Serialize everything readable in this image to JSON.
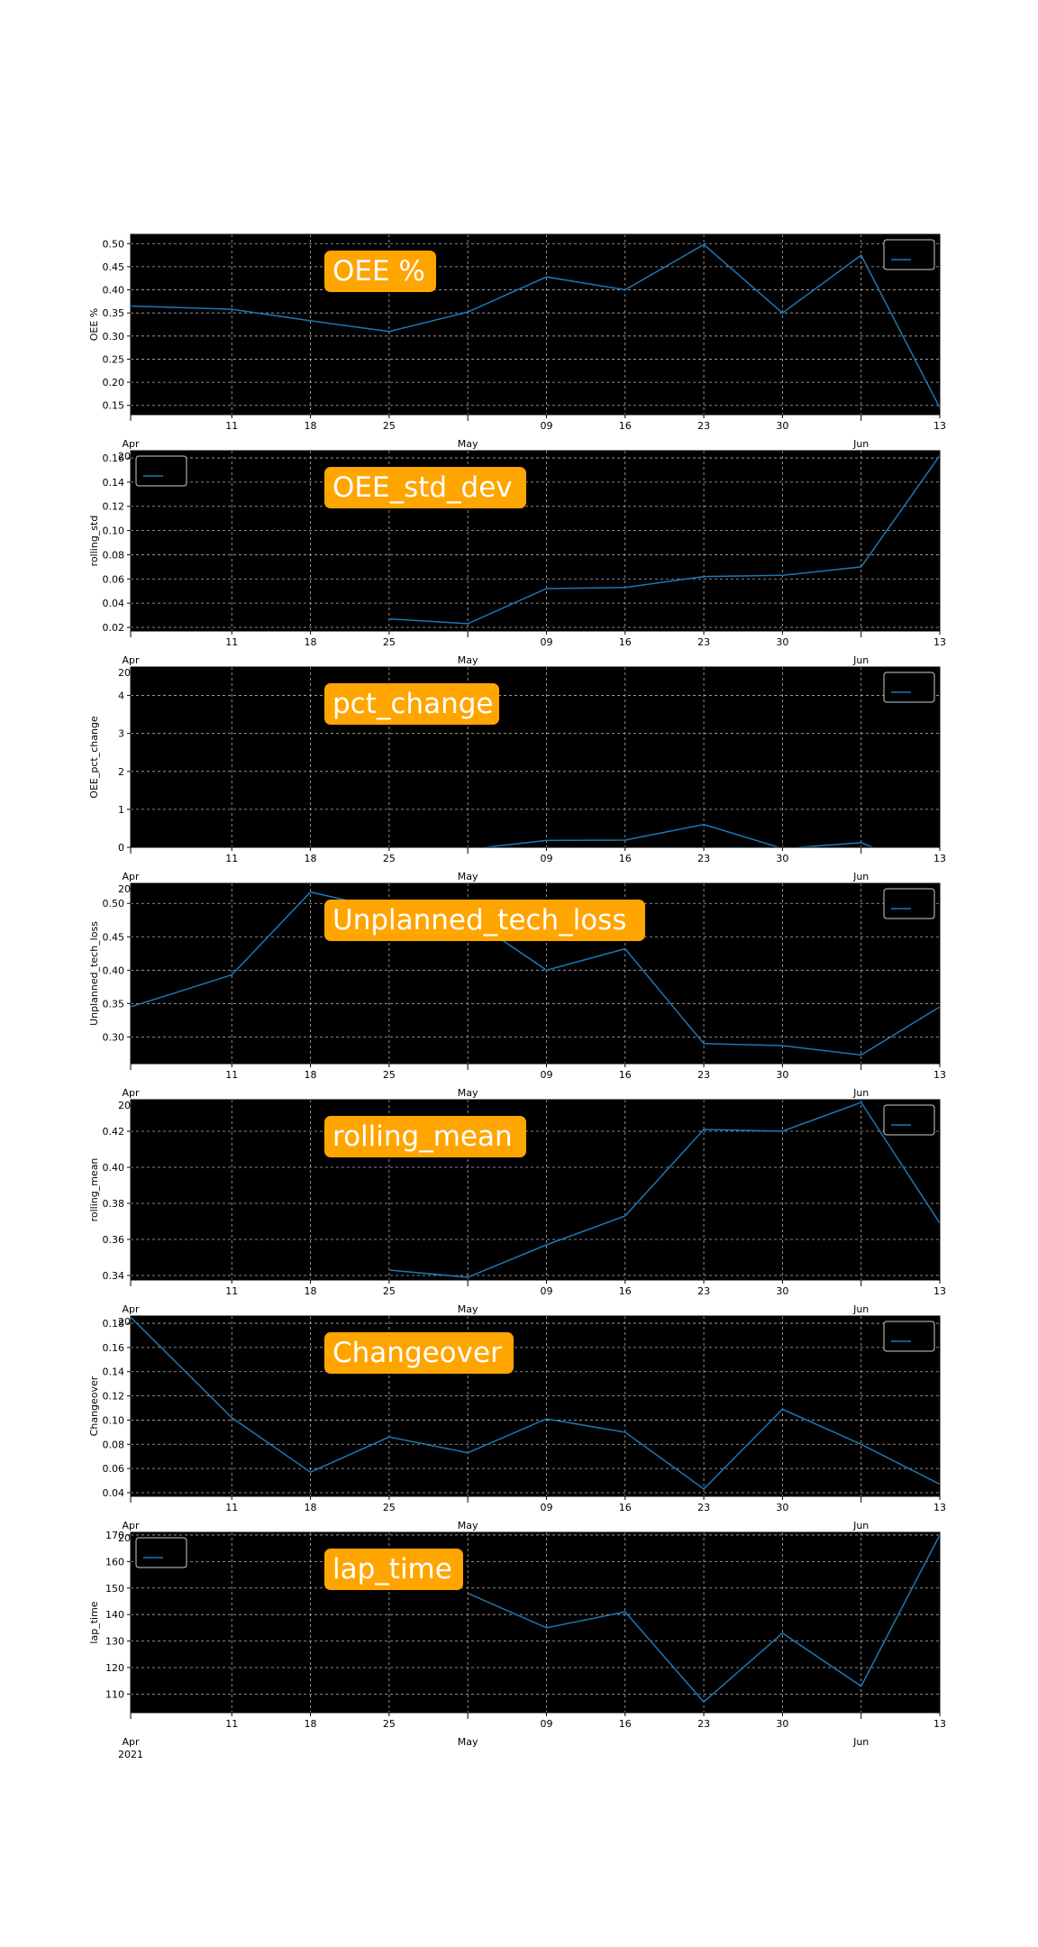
{
  "x_dates": [
    "2021-04-02",
    "2021-04-11",
    "2021-04-18",
    "2021-04-25",
    "2021-05-02",
    "2021-05-09",
    "2021-05-16",
    "2021-05-23",
    "2021-05-30",
    "2021-06-06",
    "2021-06-13"
  ],
  "x_ticks": {
    "minor": [
      {
        "date": "2021-04-11",
        "label": "11"
      },
      {
        "date": "2021-04-18",
        "label": "18"
      },
      {
        "date": "2021-04-25",
        "label": "25"
      },
      {
        "date": "2021-05-09",
        "label": "09"
      },
      {
        "date": "2021-05-16",
        "label": "16"
      },
      {
        "date": "2021-05-23",
        "label": "23"
      },
      {
        "date": "2021-05-30",
        "label": "30"
      },
      {
        "date": "2021-06-13",
        "label": "13"
      }
    ],
    "major": [
      {
        "date": "2021-04-02",
        "label": "Apr",
        "sub": "2021"
      },
      {
        "date": "2021-05-02",
        "label": "May",
        "sub": ""
      },
      {
        "date": "2021-06-06",
        "label": "Jun",
        "sub": ""
      }
    ]
  },
  "colors": {
    "plot_bg": "#000000",
    "line": "#1f77b4",
    "badge_bg": "#ffa500",
    "badge_text": "#ffffff",
    "grid": "#b0b0b0"
  },
  "chart_data": [
    {
      "type": "line",
      "title": "OEE %",
      "ylabel": "OEE %",
      "ylim": [
        0.13,
        0.52
      ],
      "legend": "top-right",
      "yticks": [
        0.15,
        0.2,
        0.25,
        0.3,
        0.35,
        0.4,
        0.45,
        0.5
      ],
      "tick_labels": [
        "0.15",
        "0.20",
        "0.25",
        "0.30",
        "0.35",
        "0.40",
        "0.45",
        "0.50"
      ],
      "values": [
        0.365,
        0.358,
        0.333,
        0.31,
        0.352,
        0.428,
        0.4,
        0.498,
        0.35,
        0.475,
        0.145
      ]
    },
    {
      "type": "line",
      "title": "OEE_std_dev",
      "ylabel": "rolling_std",
      "ylim": [
        0.017,
        0.166
      ],
      "legend": "top-left",
      "yticks": [
        0.02,
        0.04,
        0.06,
        0.08,
        0.1,
        0.12,
        0.14,
        0.16
      ],
      "tick_labels": [
        "0.02",
        "0.04",
        "0.06",
        "0.08",
        "0.10",
        "0.12",
        "0.14",
        "0.16"
      ],
      "values": [
        null,
        null,
        null,
        0.027,
        0.023,
        0.052,
        0.053,
        0.062,
        0.063,
        0.07,
        0.162
      ]
    },
    {
      "type": "line",
      "title": "pct_change",
      "ylabel": "OEE_pct_change",
      "ylim": [
        0,
        4.75
      ],
      "legend": "top-right",
      "yticks": [
        0,
        1,
        2,
        3,
        4
      ],
      "tick_labels": [
        "0",
        "1",
        "2",
        "3",
        "4"
      ],
      "values": [
        null,
        null,
        null,
        null,
        -0.05,
        0.18,
        0.19,
        0.6,
        -0.03,
        0.12,
        -0.7
      ]
    },
    {
      "type": "line",
      "title": "Unplanned_tech_loss",
      "ylabel": "Unplanned_tech_loss",
      "ylim": [
        0.26,
        0.53
      ],
      "legend": "top-right",
      "yticks": [
        0.3,
        0.35,
        0.4,
        0.45,
        0.5
      ],
      "tick_labels": [
        "0.30",
        "0.35",
        "0.40",
        "0.45",
        "0.50"
      ],
      "values": [
        0.345,
        0.393,
        0.517,
        0.49,
        0.48,
        0.4,
        0.432,
        0.29,
        0.287,
        0.273,
        0.345
      ]
    },
    {
      "type": "line",
      "title": "rolling_mean",
      "ylabel": "rolling_mean",
      "ylim": [
        0.3375,
        0.4375
      ],
      "legend": "top-right",
      "yticks": [
        0.34,
        0.36,
        0.38,
        0.4,
        0.42
      ],
      "tick_labels": [
        "0.34",
        "0.36",
        "0.38",
        "0.40",
        "0.42"
      ],
      "values": [
        null,
        null,
        null,
        0.343,
        0.339,
        0.357,
        0.373,
        0.421,
        0.42,
        0.436,
        0.369
      ]
    },
    {
      "type": "line",
      "title": "Changeover",
      "ylabel": "Changeover",
      "ylim": [
        0.037,
        0.186
      ],
      "legend": "top-right",
      "yticks": [
        0.04,
        0.06,
        0.08,
        0.1,
        0.12,
        0.14,
        0.16,
        0.18
      ],
      "tick_labels": [
        "0.04",
        "0.06",
        "0.08",
        "0.10",
        "0.12",
        "0.14",
        "0.16",
        "0.18"
      ],
      "values": [
        0.185,
        0.102,
        0.057,
        0.086,
        0.073,
        0.101,
        0.09,
        0.043,
        0.109,
        0.08,
        0.047
      ]
    },
    {
      "type": "line",
      "title": "lap_time",
      "ylabel": "lap_time",
      "ylim": [
        103,
        171
      ],
      "legend": "top-left",
      "yticks": [
        110,
        120,
        130,
        140,
        150,
        160,
        170
      ],
      "tick_labels": [
        "110",
        "120",
        "130",
        "140",
        "150",
        "160",
        "170"
      ],
      "values": [
        null,
        null,
        null,
        null,
        148,
        135,
        141,
        107,
        133,
        113,
        170
      ]
    }
  ]
}
